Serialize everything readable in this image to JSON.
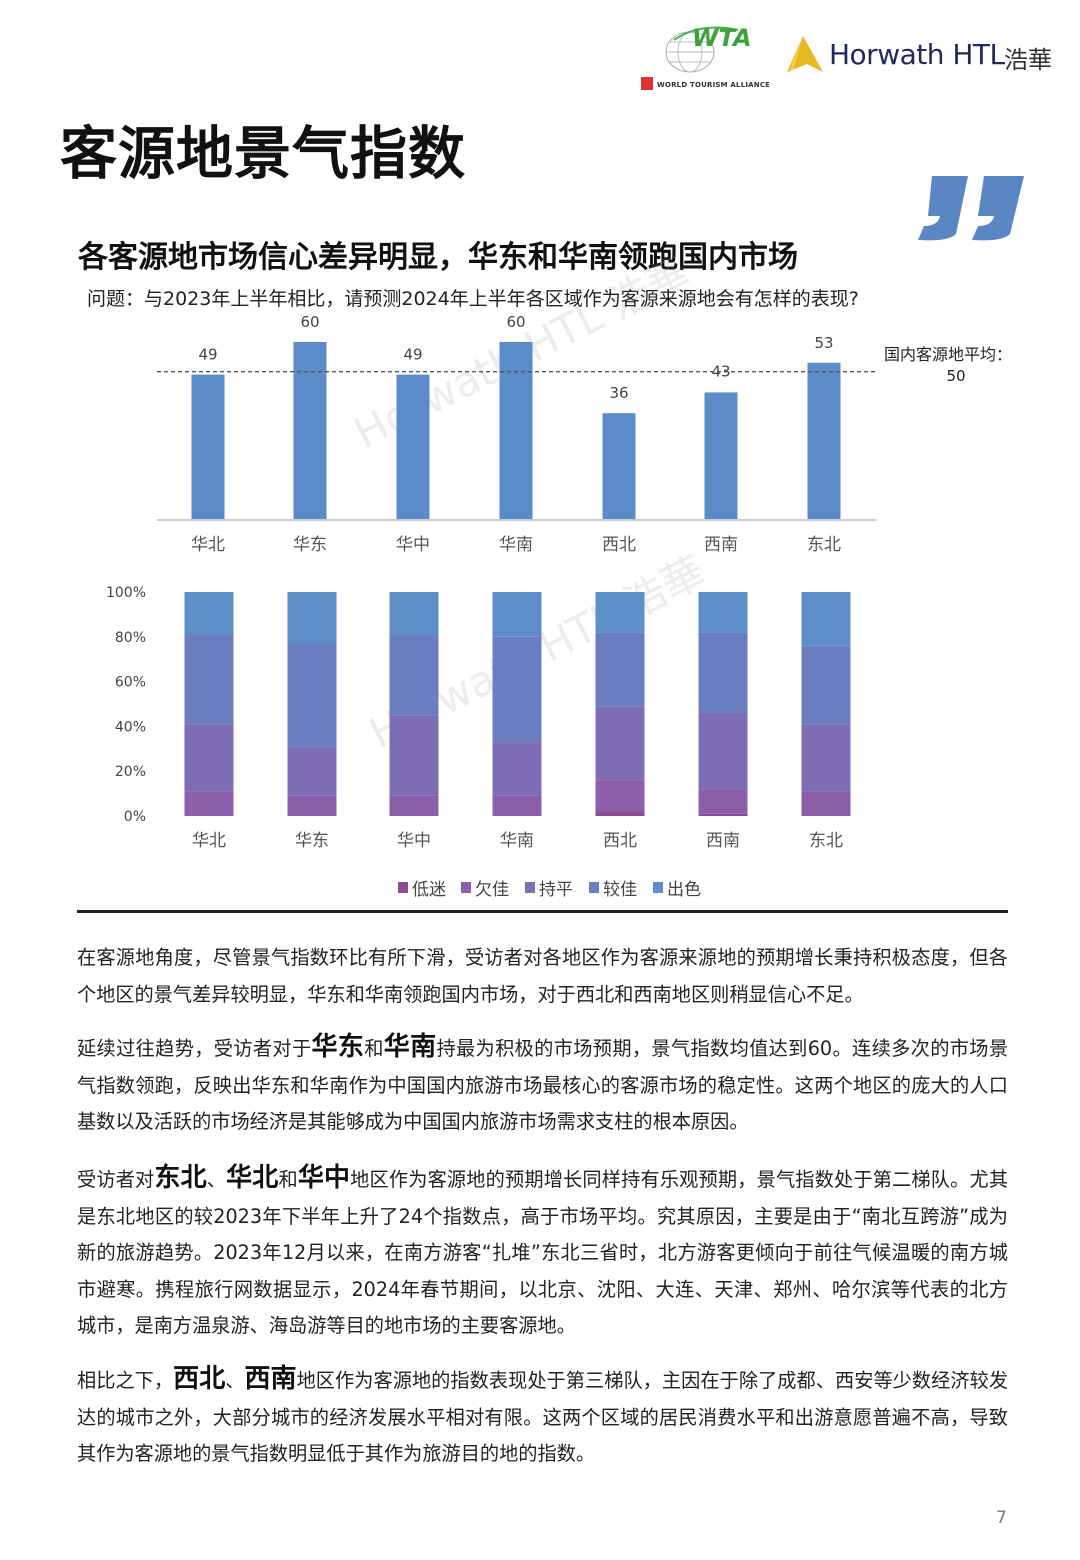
{
  "header": {
    "wta_logo_text": "WTA",
    "wta_caption": "WORLD TOURISM ALLIANCE",
    "horwath_logo_text": "Horwath HTL",
    "horwath_cn": "浩華"
  },
  "page_title": "客源地景气指数",
  "subtitle": "各客源地市场信心差异明显，华东和华南领跑国内市场",
  "question": "问题：与2023年上半年相比，请预测2024年上半年各区域作为客源来源地会有怎样的表现?",
  "watermark": "Horwath HTL 浩華",
  "colors": {
    "bar": "#5b8bc9",
    "quote": "#5b86c4",
    "segments": [
      "#8e4a92",
      "#8b5ea9",
      "#7e6cb4",
      "#6b7ec0",
      "#5d8ec8"
    ]
  },
  "chart_data": [
    {
      "type": "bar",
      "categories": [
        "华北",
        "华东",
        "华中",
        "华南",
        "西北",
        "西南",
        "东北"
      ],
      "values": [
        49,
        60,
        49,
        60,
        36,
        43,
        53
      ],
      "data_labels": [
        "49",
        "60",
        "49",
        "60",
        "36",
        "43",
        "53"
      ],
      "reference_line": {
        "value": 50,
        "label": "国内客源地平均：",
        "value_label": "50",
        "style": "dashed"
      },
      "ylim": [
        0,
        60
      ],
      "grid": false
    },
    {
      "type": "bar",
      "stacked": "percent",
      "categories": [
        "华北",
        "华东",
        "华中",
        "华南",
        "西北",
        "西南",
        "东北"
      ],
      "series": [
        {
          "name": "低迷",
          "values": [
            0,
            0,
            0,
            0,
            2,
            1,
            0
          ]
        },
        {
          "name": "欠佳",
          "values": [
            11,
            9,
            9,
            9,
            14,
            11,
            11
          ]
        },
        {
          "name": "持平",
          "values": [
            30,
            22,
            36,
            24,
            33,
            34,
            30
          ]
        },
        {
          "name": "较佳",
          "values": [
            40,
            46,
            36,
            47,
            33,
            36,
            35
          ]
        },
        {
          "name": "出色",
          "values": [
            19,
            23,
            19,
            20,
            18,
            18,
            24
          ]
        }
      ],
      "yticks": [
        "0%",
        "20%",
        "40%",
        "60%",
        "80%",
        "100%"
      ],
      "ylim": [
        0,
        100
      ],
      "legend": "bottom",
      "grid": false
    }
  ],
  "paragraphs": [
    [
      {
        "text": "在客源地角度，尽管景气指数环比有所下滑，受访者对各地区作为客源来源地的预期增长秉持积极态度，但各个地区的景气差异较明显，华东和华南领跑国内市场，对于西北和西南地区则稍显信心不足。",
        "bold": false
      }
    ],
    [
      {
        "text": "延续过往趋势，受访者对于",
        "bold": false
      },
      {
        "text": "华东",
        "bold": true
      },
      {
        "text": "和",
        "bold": false
      },
      {
        "text": "华南",
        "bold": true
      },
      {
        "text": "持最为积极的市场预期，景气指数均值达到60。连续多次的市场景气指数领跑，反映出华东和华南作为中国国内旅游市场最核心的客源市场的稳定性。这两个地区的庞大的人口基数以及活跃的市场经济是其能够成为中国国内旅游市场需求支柱的根本原因。",
        "bold": false
      }
    ],
    [
      {
        "text": "受访者对",
        "bold": false
      },
      {
        "text": "东北",
        "bold": true
      },
      {
        "text": "、",
        "bold": false
      },
      {
        "text": "华北",
        "bold": true
      },
      {
        "text": "和",
        "bold": false
      },
      {
        "text": "华中",
        "bold": true
      },
      {
        "text": "地区作为客源地的预期增长同样持有乐观预期，景气指数处于第二梯队。尤其是东北地区的较2023年下半年上升了24个指数点，高于市场平均。究其原因，主要是由于“南北互跨游”成为新的旅游趋势。2023年12月以来，在南方游客“扎堆”东北三省时，北方游客更倾向于前往气候温暖的南方城市避寒。携程旅行网数据显示，2024年春节期间，以北京、沈阳、大连、天津、郑州、哈尔滨等代表的北方城市，是南方温泉游、海岛游等目的地市场的主要客源地。",
        "bold": false
      }
    ],
    [
      {
        "text": "相比之下，",
        "bold": false
      },
      {
        "text": "西北",
        "bold": true
      },
      {
        "text": "、",
        "bold": false
      },
      {
        "text": "西南",
        "bold": true
      },
      {
        "text": "地区作为客源地的指数表现处于第三梯队，主因在于除了成都、西安等少数经济较发达的城市之外，大部分城市的经济发展水平相对有限。这两个区域的居民消费水平和出游意愿普遍不高，导致其作为客源地的景气指数明显低于其作为旅游目的地的指数。",
        "bold": false
      }
    ]
  ],
  "page_number": "7"
}
